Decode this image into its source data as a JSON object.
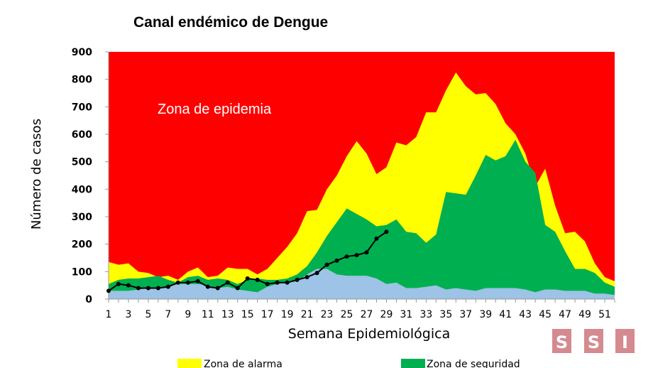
{
  "chart_data": {
    "type": "area",
    "title": "Canal endémico de Dengue",
    "xlabel": "Semana Epidemiológica",
    "ylabel": "Número de casos",
    "annotation": "Zona de epidemia",
    "ylim": [
      0,
      900
    ],
    "yticks": [
      0,
      100,
      200,
      300,
      400,
      500,
      600,
      700,
      800,
      900
    ],
    "xlim": [
      1,
      52
    ],
    "xtick_labels": [
      1,
      3,
      5,
      7,
      9,
      11,
      13,
      15,
      17,
      19,
      21,
      23,
      25,
      27,
      29,
      31,
      33,
      35,
      37,
      39,
      41,
      43,
      45,
      47,
      49,
      51
    ],
    "grid": false,
    "legend_placement": "bottom",
    "x": [
      1,
      2,
      3,
      4,
      5,
      6,
      7,
      8,
      9,
      10,
      11,
      12,
      13,
      14,
      15,
      16,
      17,
      18,
      19,
      20,
      21,
      22,
      23,
      24,
      25,
      26,
      27,
      28,
      29,
      30,
      31,
      32,
      33,
      34,
      35,
      36,
      37,
      38,
      39,
      40,
      41,
      42,
      43,
      44,
      45,
      46,
      47,
      48,
      49,
      50,
      51,
      52
    ],
    "series": [
      {
        "name": "",
        "key": "epidemia",
        "color": "#ff0000",
        "values": [
          900,
          900,
          900,
          900,
          900,
          900,
          900,
          900,
          900,
          900,
          900,
          900,
          900,
          900,
          900,
          900,
          900,
          900,
          900,
          900,
          900,
          900,
          900,
          900,
          900,
          900,
          900,
          900,
          900,
          900,
          900,
          900,
          900,
          900,
          900,
          900,
          900,
          900,
          900,
          900,
          900,
          900,
          900,
          900,
          900,
          900,
          900,
          900,
          900,
          900,
          900,
          900
        ]
      },
      {
        "name": "Zona de alarma",
        "key": "alarma",
        "color": "#ffff00",
        "values": [
          135,
          125,
          130,
          100,
          95,
          80,
          85,
          70,
          100,
          115,
          80,
          85,
          115,
          110,
          110,
          90,
          110,
          150,
          190,
          240,
          320,
          325,
          400,
          450,
          520,
          575,
          530,
          455,
          480,
          570,
          560,
          590,
          680,
          680,
          760,
          825,
          775,
          745,
          750,
          710,
          640,
          600,
          530,
          410,
          475,
          340,
          240,
          245,
          210,
          130,
          80,
          65
        ]
      },
      {
        "name": "Zona de seguridad",
        "key": "seguridad",
        "color": "#00b050",
        "values": [
          55,
          70,
          75,
          75,
          80,
          85,
          70,
          60,
          80,
          85,
          70,
          75,
          70,
          55,
          70,
          75,
          70,
          70,
          75,
          90,
          120,
          170,
          230,
          280,
          330,
          310,
          290,
          265,
          270,
          290,
          245,
          240,
          205,
          235,
          390,
          385,
          380,
          450,
          525,
          505,
          520,
          580,
          500,
          460,
          270,
          245,
          175,
          110,
          110,
          95,
          60,
          45
        ]
      },
      {
        "name": "",
        "key": "exito",
        "color": "#9dc3e6",
        "values": [
          30,
          30,
          30,
          35,
          40,
          40,
          45,
          55,
          55,
          55,
          50,
          40,
          45,
          35,
          30,
          25,
          45,
          55,
          60,
          65,
          90,
          110,
          110,
          90,
          85,
          85,
          85,
          75,
          55,
          60,
          40,
          40,
          45,
          50,
          35,
          40,
          35,
          30,
          40,
          40,
          40,
          40,
          35,
          25,
          35,
          35,
          30,
          30,
          30,
          20,
          20,
          15
        ]
      }
    ],
    "current_line": {
      "name": "",
      "color": "#000000",
      "values": [
        30,
        55,
        50,
        40,
        40,
        40,
        45,
        60,
        60,
        65,
        45,
        40,
        60,
        40,
        75,
        70,
        55,
        60,
        60,
        70,
        80,
        95,
        125,
        140,
        155,
        160,
        170,
        220,
        245
      ]
    }
  },
  "logo": {
    "text": [
      "S",
      "S",
      "I"
    ],
    "color": "#d48a8f"
  }
}
